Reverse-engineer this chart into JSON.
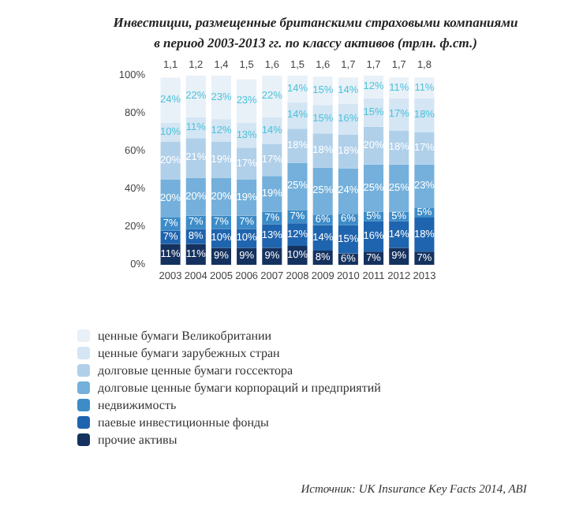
{
  "chart_data": {
    "type": "bar",
    "title": "Инвестиции, размещенные британскими страховыми компаниями в период 2003-2013 гг. по классу активов (трлн. ф.ст.)",
    "categories": [
      "2003",
      "2004",
      "2005",
      "2006",
      "2007",
      "2008",
      "2009",
      "2010",
      "2011",
      "2012",
      "2013"
    ],
    "stacked": true,
    "ylim": [
      0,
      100
    ],
    "yticks": [
      {
        "value": 0,
        "label": "0%"
      },
      {
        "value": 20,
        "label": "20%"
      },
      {
        "value": 40,
        "label": "40%"
      },
      {
        "value": 60,
        "label": "60%"
      },
      {
        "value": 80,
        "label": "80%"
      },
      {
        "value": 100,
        "label": "100%"
      }
    ],
    "series": [
      {
        "name": "прочие активы",
        "color": "#15325f",
        "values": [
          11,
          11,
          9,
          9,
          9,
          10,
          7.5,
          6,
          7,
          9,
          7
        ],
        "value_labels": [
          "11%",
          "11%",
          "9%",
          "9%",
          "9%",
          "10%",
          "8%",
          "6%",
          "7%",
          "9%",
          "7%"
        ]
      },
      {
        "name": "паевые инвестиционные фонды",
        "color": "#1f64ae",
        "values": [
          7,
          8,
          10,
          10,
          12.5,
          12,
          13.5,
          15,
          16,
          14,
          18
        ],
        "value_labels": [
          "7%",
          "8%",
          "10%",
          "10%",
          "13%",
          "12%",
          "14%",
          "15%",
          "16%",
          "14%",
          "18%"
        ]
      },
      {
        "name": "недвижимость",
        "color": "#3d8cc8",
        "values": [
          7,
          7,
          7,
          7,
          6.5,
          7,
          5.5,
          6,
          5,
          5,
          5
        ],
        "value_labels": [
          "7%",
          "7%",
          "7%",
          "7%",
          "7%",
          "7%",
          "6%",
          "6%",
          "5%",
          "5%",
          "5%"
        ]
      },
      {
        "name": "долговые ценные бумаги корпораций и предприятий",
        "color": "#74b0db",
        "values": [
          20,
          20,
          20,
          19,
          19,
          25,
          25,
          24,
          25,
          25,
          23
        ],
        "value_labels": [
          "20%",
          "20%",
          "20%",
          "19%",
          "19%",
          "25%",
          "25%",
          "24%",
          "25%",
          "25%",
          "23%"
        ]
      },
      {
        "name": "долговые ценные бумаги госсектора",
        "color": "#b0d0ea",
        "values": [
          20,
          21,
          19,
          17,
          17,
          18,
          18,
          18,
          20,
          18,
          17
        ],
        "value_labels": [
          "20%",
          "21%",
          "19%",
          "17%",
          "17%",
          "18%",
          "18%",
          "18%",
          "20%",
          "18%",
          "17%"
        ]
      },
      {
        "name": "ценные бумаги зарубежных стран",
        "color": "#d4e5f4",
        "values": [
          10,
          11,
          12,
          13,
          14,
          14,
          15,
          16,
          15,
          17,
          18
        ],
        "value_labels": [
          "10%",
          "11%",
          "12%",
          "13%",
          "14%",
          "14%",
          "15%",
          "16%",
          "15%",
          "17%",
          "18%"
        ]
      },
      {
        "name": "ценные бумаги Великобритании",
        "color": "#e8f0f8",
        "values": [
          24,
          22,
          23,
          23,
          22,
          14,
          15,
          14,
          12,
          11,
          11
        ],
        "value_labels": [
          "24%",
          "22%",
          "23%",
          "23%",
          "22%",
          "14%",
          "15%",
          "14%",
          "12%",
          "11%",
          "11%"
        ]
      }
    ],
    "legend": "bottom left",
    "grid": false,
    "annotations": [
      {
        "text": "1,1",
        "x": "2003",
        "y": 100
      },
      {
        "text": "1,2",
        "x": "2004",
        "y": 100
      },
      {
        "text": "1,4",
        "x": "2005",
        "y": 100
      },
      {
        "text": "1,5",
        "x": "2006",
        "y": 100
      },
      {
        "text": "1,6",
        "x": "2007",
        "y": 100
      },
      {
        "text": "1,5",
        "x": "2008",
        "y": 100
      },
      {
        "text": "1,6",
        "x": "2009",
        "y": 100
      },
      {
        "text": "1,7",
        "x": "2010",
        "y": 100
      },
      {
        "text": "1,7",
        "x": "2011",
        "y": 100
      },
      {
        "text": "1,7",
        "x": "2012",
        "y": 100
      },
      {
        "text": "1,8",
        "x": "2013",
        "y": 100
      },
      "Источник: UK Insurance Key Facts 2014, ABI"
    ]
  }
}
